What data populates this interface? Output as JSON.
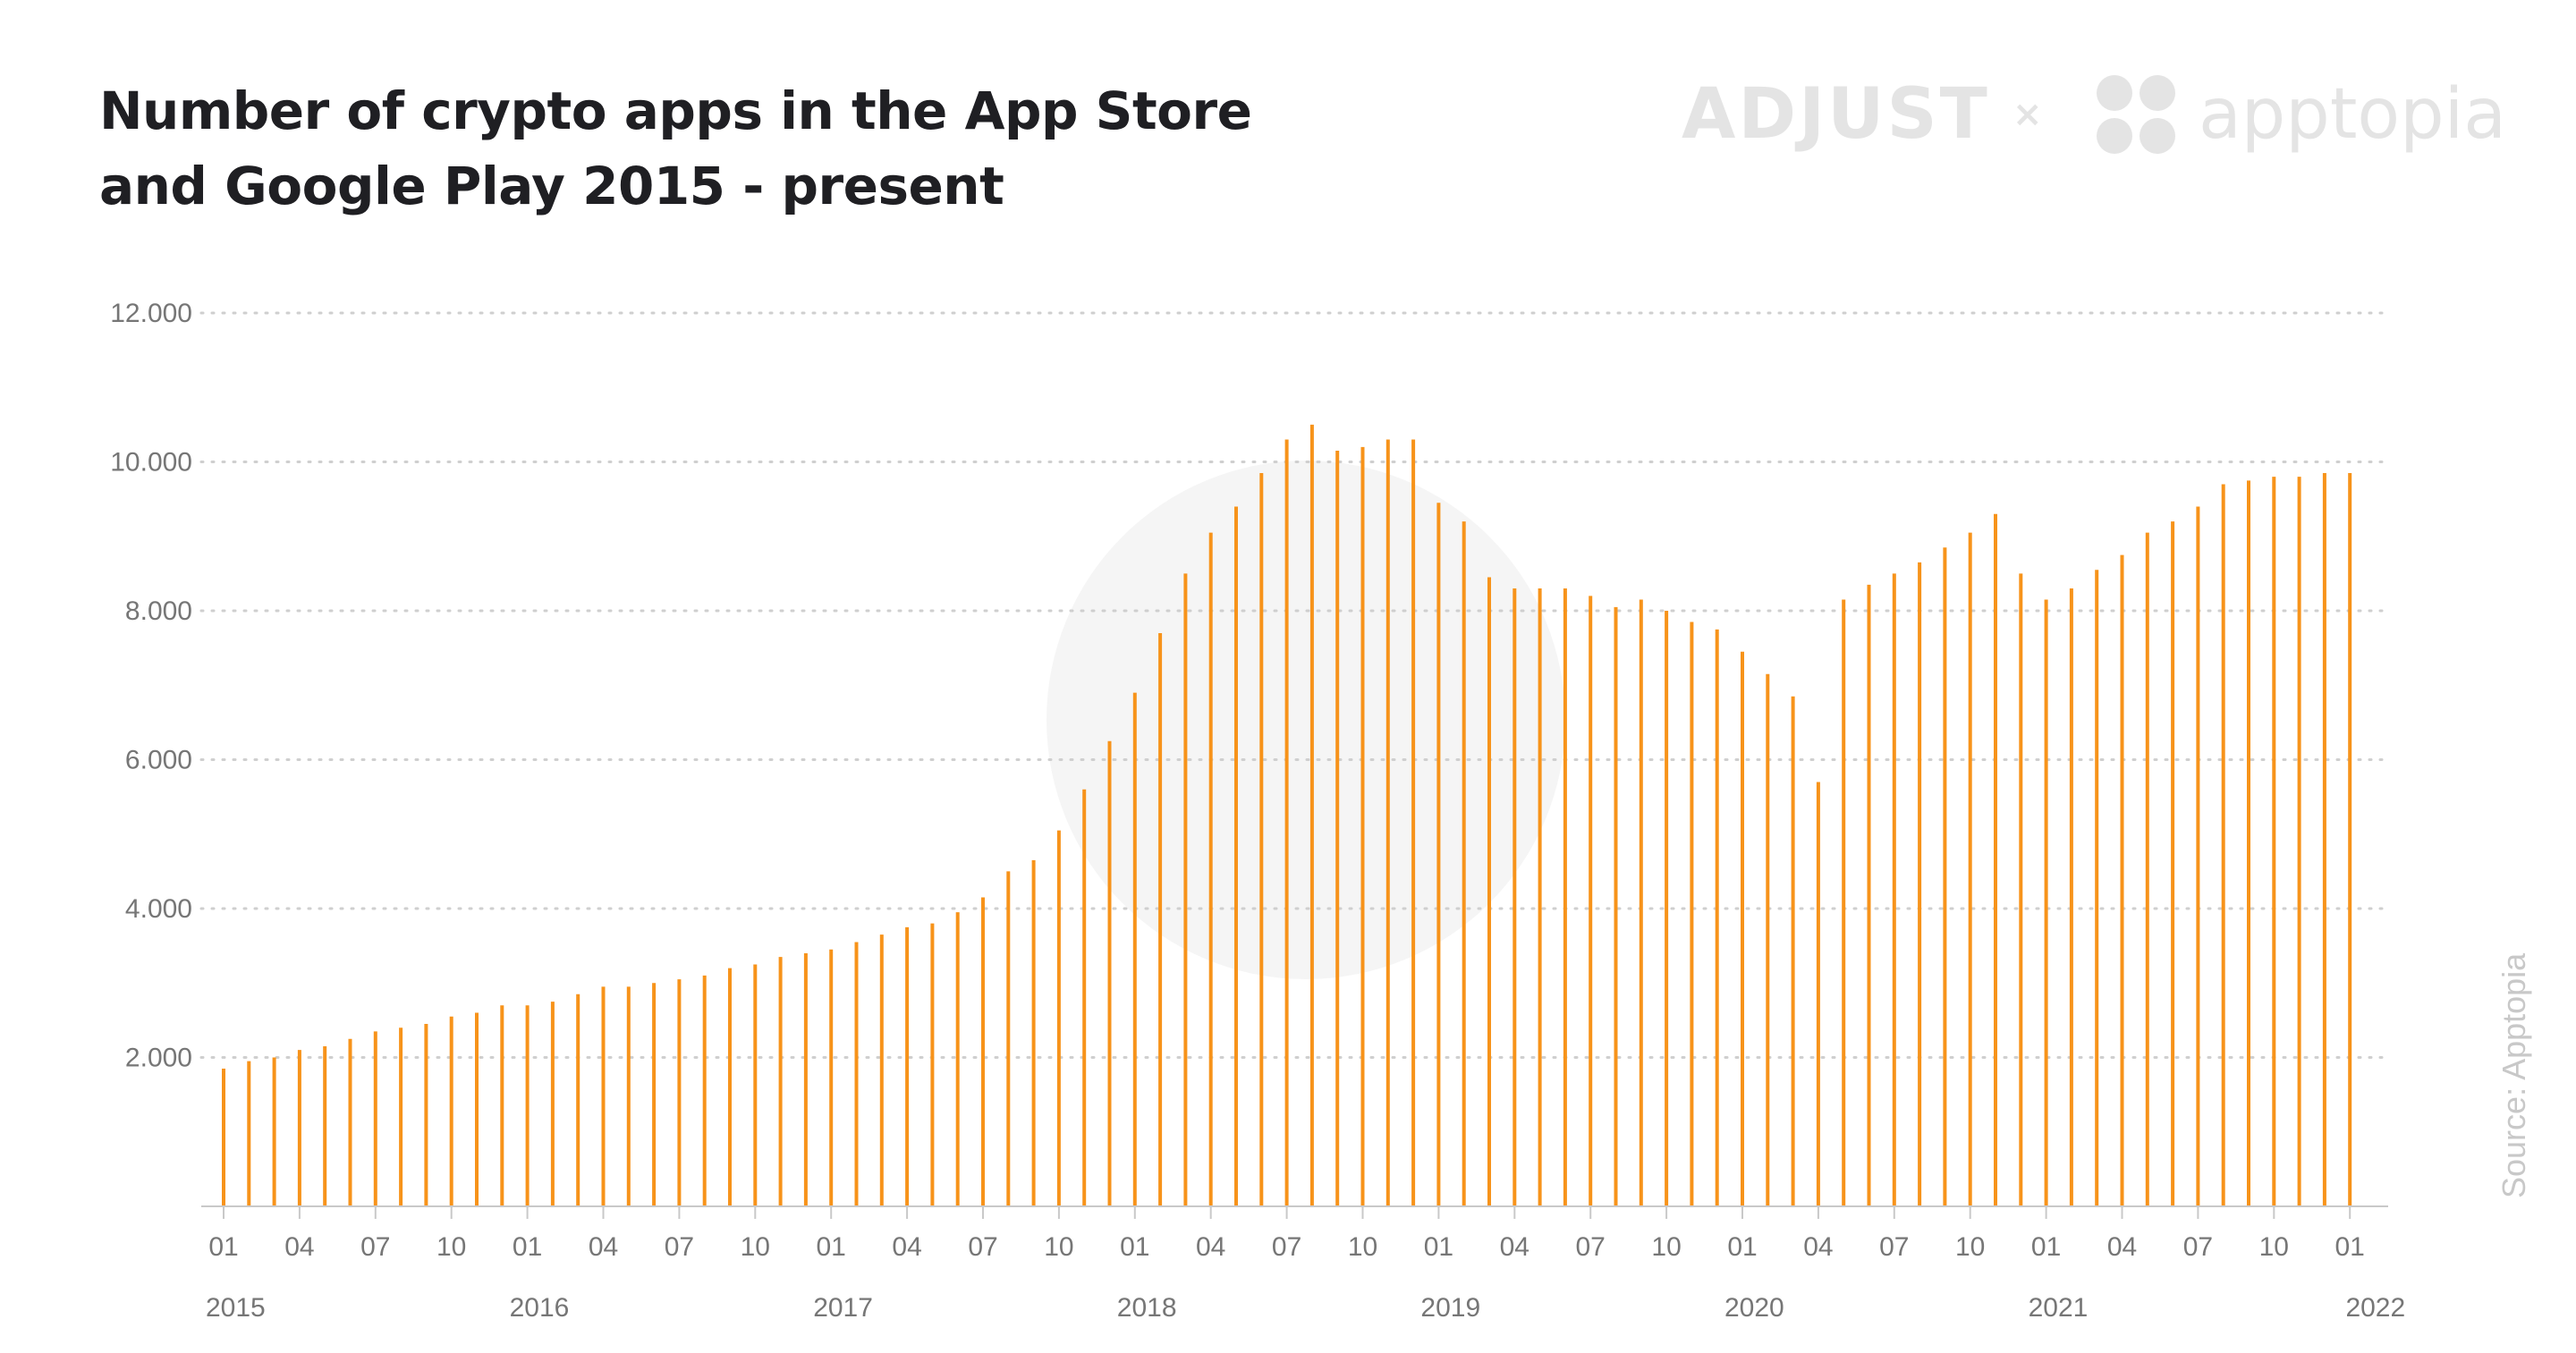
{
  "title": {
    "line1": "Number of crypto apps in the App Store",
    "line2": "and Google Play 2015 - present"
  },
  "brands": {
    "left": "ADJUST",
    "separator": "×",
    "right": "apptopia"
  },
  "source": "Source:  Apptopia",
  "colors": {
    "bar": "#f7931a",
    "grid": "#cfcfcf",
    "axis": "#c9c9c9",
    "text": "#767676",
    "title": "#1f1f23",
    "watermark": "#f5f5f5"
  },
  "chart_data": {
    "type": "bar",
    "ylim": [
      0,
      12000
    ],
    "yticks": [
      2000,
      4000,
      6000,
      8000,
      10000,
      12000
    ],
    "ytick_labels": [
      "2.000",
      "4.000",
      "6.000",
      "8.000",
      "10.000",
      "12.000"
    ],
    "grid": "horizontal dotted",
    "legend": "none",
    "xtick_labels": [
      "01",
      "04",
      "07",
      "10",
      "01",
      "04",
      "07",
      "10",
      "01",
      "04",
      "07",
      "10",
      "01",
      "04",
      "07",
      "10",
      "01",
      "04",
      "07",
      "10",
      "01",
      "04",
      "07",
      "10",
      "01",
      "04",
      "07",
      "10",
      "01"
    ],
    "xtick_indices": [
      0,
      3,
      6,
      9,
      12,
      15,
      18,
      21,
      24,
      27,
      30,
      33,
      36,
      39,
      42,
      45,
      48,
      51,
      54,
      57,
      60,
      63,
      66,
      69,
      72,
      75,
      78,
      81,
      84
    ],
    "years": [
      {
        "label": "2015",
        "index": 0
      },
      {
        "label": "2016",
        "index": 12
      },
      {
        "label": "2017",
        "index": 24
      },
      {
        "label": "2018",
        "index": 36
      },
      {
        "label": "2019",
        "index": 48
      },
      {
        "label": "2020",
        "index": 60
      },
      {
        "label": "2021",
        "index": 72
      },
      {
        "label": "2022",
        "index": 84
      }
    ],
    "categories": [
      "2015-01",
      "2015-02",
      "2015-03",
      "2015-04",
      "2015-05",
      "2015-06",
      "2015-07",
      "2015-08",
      "2015-09",
      "2015-10",
      "2015-11",
      "2015-12",
      "2016-01",
      "2016-02",
      "2016-03",
      "2016-04",
      "2016-05",
      "2016-06",
      "2016-07",
      "2016-08",
      "2016-09",
      "2016-10",
      "2016-11",
      "2016-12",
      "2017-01",
      "2017-02",
      "2017-03",
      "2017-04",
      "2017-05",
      "2017-06",
      "2017-07",
      "2017-08",
      "2017-09",
      "2017-10",
      "2017-11",
      "2017-12",
      "2018-01",
      "2018-02",
      "2018-03",
      "2018-04",
      "2018-05",
      "2018-06",
      "2018-07",
      "2018-08",
      "2018-09",
      "2018-10",
      "2018-11",
      "2018-12",
      "2019-01",
      "2019-02",
      "2019-03",
      "2019-04",
      "2019-05",
      "2019-06",
      "2019-07",
      "2019-08",
      "2019-09",
      "2019-10",
      "2019-11",
      "2019-12",
      "2020-01",
      "2020-02",
      "2020-03",
      "2020-04",
      "2020-05",
      "2020-06",
      "2020-07",
      "2020-08",
      "2020-09",
      "2020-10",
      "2020-11",
      "2020-12",
      "2021-01",
      "2021-02",
      "2021-03",
      "2021-04",
      "2021-05",
      "2021-06",
      "2021-07",
      "2021-08",
      "2021-09",
      "2021-10",
      "2021-11",
      "2021-12",
      "2022-01"
    ],
    "values": [
      1850,
      1950,
      2000,
      2100,
      2150,
      2250,
      2350,
      2400,
      2450,
      2550,
      2600,
      2700,
      2700,
      2750,
      2850,
      2950,
      2950,
      3000,
      3050,
      3100,
      3200,
      3250,
      3350,
      3400,
      3450,
      3550,
      3650,
      3750,
      3800,
      3950,
      4150,
      4500,
      4650,
      5050,
      5600,
      6250,
      6900,
      7700,
      8500,
      9050,
      9400,
      9850,
      10300,
      10500,
      10150,
      10200,
      10300,
      10300,
      9450,
      9200,
      8450,
      8300,
      8300,
      8300,
      8200,
      8050,
      8150,
      8000,
      7850,
      7750,
      7450,
      7150,
      6850,
      5700,
      8150,
      8350,
      8500,
      8650,
      8850,
      9050,
      9300,
      8500,
      8150,
      8300,
      8550,
      8750,
      9050,
      9200,
      9400,
      9700,
      9750,
      9800,
      9800,
      9850,
      9850
    ]
  }
}
